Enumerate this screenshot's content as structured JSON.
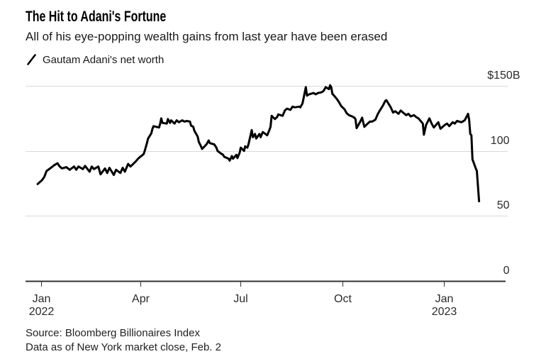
{
  "header": {
    "title": "The Hit to Adani's Fortune",
    "subtitle": "All of his eye-popping wealth gains from last year have been erased"
  },
  "legend": {
    "series_label": "Gautam Adani's net worth"
  },
  "footer": {
    "source_line1": "Source: Bloomberg Billionaires Index",
    "source_line2": "Data as of New York market close, Feb. 2"
  },
  "colors": {
    "background": "#ffffff",
    "series_line": "#000000",
    "gridline": "#d9d9d9",
    "axis_line": "#333333",
    "axis_text": "#2b2b2b",
    "title_text": "#000000"
  },
  "chart_data": {
    "type": "line",
    "title": "The Hit to Adani's Fortune",
    "subtitle": "All of his eye-popping wealth gains from last year have been erased",
    "series_name": "Gautam Adani's net worth",
    "unit": "USD billions",
    "grid": true,
    "legend_position": "top-left",
    "ylim": [
      0,
      150
    ],
    "y_ticks": [
      {
        "value": 150,
        "label": "$150B"
      },
      {
        "value": 100,
        "label": "100"
      },
      {
        "value": 50,
        "label": "50"
      },
      {
        "value": 0,
        "label": "0"
      }
    ],
    "x_domain": [
      "2021-12-18",
      "2023-02-26"
    ],
    "x_ticks": [
      {
        "date": "2022-01-01",
        "label": "Jan",
        "year_label": "2022"
      },
      {
        "date": "2022-04-01",
        "label": "Apr"
      },
      {
        "date": "2022-07-01",
        "label": "Jul"
      },
      {
        "date": "2022-10-01",
        "label": "Oct"
      },
      {
        "date": "2023-01-01",
        "label": "Jan",
        "year_label": "2023"
      }
    ],
    "points": [
      [
        "2021-12-29",
        74.5
      ],
      [
        "2022-01-02",
        77.5
      ],
      [
        "2022-01-04",
        80
      ],
      [
        "2022-01-06",
        84.5
      ],
      [
        "2022-01-10",
        87
      ],
      [
        "2022-01-13",
        89
      ],
      [
        "2022-01-16",
        90.5
      ],
      [
        "2022-01-18",
        88
      ],
      [
        "2022-01-20",
        86.5
      ],
      [
        "2022-01-24",
        87.5
      ],
      [
        "2022-01-27",
        85.5
      ],
      [
        "2022-01-31",
        88
      ],
      [
        "2022-02-02",
        85.5
      ],
      [
        "2022-02-04",
        88
      ],
      [
        "2022-02-08",
        86
      ],
      [
        "2022-02-10",
        88.5
      ],
      [
        "2022-02-14",
        84
      ],
      [
        "2022-02-16",
        88
      ],
      [
        "2022-02-18",
        86
      ],
      [
        "2022-02-22",
        88
      ],
      [
        "2022-02-24",
        82
      ],
      [
        "2022-02-28",
        86.5
      ],
      [
        "2022-03-02",
        83
      ],
      [
        "2022-03-04",
        87
      ],
      [
        "2022-03-08",
        81.5
      ],
      [
        "2022-03-10",
        85.5
      ],
      [
        "2022-03-14",
        83
      ],
      [
        "2022-03-16",
        87
      ],
      [
        "2022-03-18",
        84
      ],
      [
        "2022-03-21",
        90
      ],
      [
        "2022-03-23",
        88
      ],
      [
        "2022-03-25",
        89.5
      ],
      [
        "2022-03-28",
        92
      ],
      [
        "2022-03-30",
        94
      ],
      [
        "2022-04-01",
        95.5
      ],
      [
        "2022-04-04",
        97.5
      ],
      [
        "2022-04-05",
        100
      ],
      [
        "2022-04-07",
        106
      ],
      [
        "2022-04-08",
        109.5
      ],
      [
        "2022-04-11",
        113.5
      ],
      [
        "2022-04-12",
        117
      ],
      [
        "2022-04-13",
        119
      ],
      [
        "2022-04-18",
        118
      ],
      [
        "2022-04-19",
        121
      ],
      [
        "2022-04-20",
        125
      ],
      [
        "2022-04-21",
        121.5
      ],
      [
        "2022-04-25",
        121
      ],
      [
        "2022-04-26",
        124.5
      ],
      [
        "2022-04-28",
        121.5
      ],
      [
        "2022-04-29",
        123.5
      ],
      [
        "2022-05-02",
        121
      ],
      [
        "2022-05-04",
        123.5
      ],
      [
        "2022-05-06",
        122
      ],
      [
        "2022-05-09",
        123.5
      ],
      [
        "2022-05-11",
        122.5
      ],
      [
        "2022-05-13",
        123
      ],
      [
        "2022-05-16",
        122.5
      ],
      [
        "2022-05-17",
        119.5
      ],
      [
        "2022-05-19",
        118.5
      ],
      [
        "2022-05-20",
        115.5
      ],
      [
        "2022-05-23",
        111
      ],
      [
        "2022-05-24",
        107
      ],
      [
        "2022-05-26",
        103.5
      ],
      [
        "2022-05-27",
        101.5
      ],
      [
        "2022-05-31",
        105
      ],
      [
        "2022-06-02",
        108
      ],
      [
        "2022-06-03",
        106
      ],
      [
        "2022-06-07",
        105
      ],
      [
        "2022-06-09",
        102.5
      ],
      [
        "2022-06-10",
        100
      ],
      [
        "2022-06-13",
        98
      ],
      [
        "2022-06-15",
        97
      ],
      [
        "2022-06-16",
        95.5
      ],
      [
        "2022-06-20",
        94
      ],
      [
        "2022-06-21",
        92.5
      ],
      [
        "2022-06-23",
        96
      ],
      [
        "2022-06-24",
        94
      ],
      [
        "2022-06-27",
        97
      ],
      [
        "2022-06-28",
        94.5
      ],
      [
        "2022-06-30",
        98.5
      ],
      [
        "2022-07-01",
        102.5
      ],
      [
        "2022-07-04",
        100
      ],
      [
        "2022-07-05",
        103.5
      ],
      [
        "2022-07-07",
        102.5
      ],
      [
        "2022-07-08",
        105
      ],
      [
        "2022-07-11",
        116
      ],
      [
        "2022-07-12",
        110.5
      ],
      [
        "2022-07-14",
        113
      ],
      [
        "2022-07-15",
        109.5
      ],
      [
        "2022-07-18",
        113
      ],
      [
        "2022-07-19",
        110.5
      ],
      [
        "2022-07-21",
        114.5
      ],
      [
        "2022-07-25",
        112
      ],
      [
        "2022-07-27",
        116
      ],
      [
        "2022-07-28",
        118.5
      ],
      [
        "2022-07-29",
        127
      ],
      [
        "2022-08-01",
        124.5
      ],
      [
        "2022-08-03",
        126
      ],
      [
        "2022-08-04",
        128
      ],
      [
        "2022-08-08",
        127
      ],
      [
        "2022-08-10",
        131
      ],
      [
        "2022-08-12",
        132.5
      ],
      [
        "2022-08-15",
        131.5
      ],
      [
        "2022-08-17",
        134
      ],
      [
        "2022-08-19",
        133.5
      ],
      [
        "2022-08-23",
        134
      ],
      [
        "2022-08-24",
        133.5
      ],
      [
        "2022-08-26",
        136.5
      ],
      [
        "2022-08-29",
        149
      ],
      [
        "2022-08-30",
        142.5
      ],
      [
        "2022-09-01",
        143.5
      ],
      [
        "2022-09-05",
        144.5
      ],
      [
        "2022-09-07",
        143.5
      ],
      [
        "2022-09-09",
        144.5
      ],
      [
        "2022-09-12",
        145
      ],
      [
        "2022-09-14",
        146
      ],
      [
        "2022-09-15",
        147.5
      ],
      [
        "2022-09-16",
        149
      ],
      [
        "2022-09-19",
        147.5
      ],
      [
        "2022-09-20",
        150.5
      ],
      [
        "2022-09-21",
        149
      ],
      [
        "2022-09-22",
        144
      ],
      [
        "2022-09-26",
        140
      ],
      [
        "2022-09-28",
        137.5
      ],
      [
        "2022-09-30",
        134.5
      ],
      [
        "2022-10-03",
        132
      ],
      [
        "2022-10-05",
        129
      ],
      [
        "2022-10-07",
        127.5
      ],
      [
        "2022-10-10",
        126.5
      ],
      [
        "2022-10-12",
        125.5
      ],
      [
        "2022-10-13",
        124.5
      ],
      [
        "2022-10-14",
        117.5
      ],
      [
        "2022-10-17",
        122
      ],
      [
        "2022-10-19",
        125.5
      ],
      [
        "2022-10-21",
        118.5
      ],
      [
        "2022-10-24",
        121
      ],
      [
        "2022-10-26",
        122.5
      ],
      [
        "2022-10-28",
        122.5
      ],
      [
        "2022-10-31",
        124
      ],
      [
        "2022-11-02",
        128
      ],
      [
        "2022-11-04",
        131
      ],
      [
        "2022-11-07",
        135
      ],
      [
        "2022-11-09",
        138.5
      ],
      [
        "2022-11-10",
        139
      ],
      [
        "2022-11-11",
        137.5
      ],
      [
        "2022-11-14",
        133.5
      ],
      [
        "2022-11-16",
        129.5
      ],
      [
        "2022-11-18",
        130.5
      ],
      [
        "2022-11-21",
        128.5
      ],
      [
        "2022-11-23",
        131
      ],
      [
        "2022-11-25",
        129.5
      ],
      [
        "2022-11-28",
        127.5
      ],
      [
        "2022-11-30",
        128.5
      ],
      [
        "2022-12-02",
        126.5
      ],
      [
        "2022-12-05",
        127.5
      ],
      [
        "2022-12-07",
        126
      ],
      [
        "2022-12-09",
        125
      ],
      [
        "2022-12-13",
        121
      ],
      [
        "2022-12-14",
        112.5
      ],
      [
        "2022-12-16",
        120
      ],
      [
        "2022-12-19",
        125
      ],
      [
        "2022-12-21",
        121
      ],
      [
        "2022-12-23",
        118
      ],
      [
        "2022-12-27",
        122
      ],
      [
        "2022-12-29",
        117
      ],
      [
        "2023-01-02",
        120
      ],
      [
        "2023-01-04",
        121
      ],
      [
        "2023-01-06",
        119
      ],
      [
        "2023-01-09",
        122
      ],
      [
        "2023-01-11",
        121
      ],
      [
        "2023-01-13",
        123
      ],
      [
        "2023-01-17",
        122
      ],
      [
        "2023-01-20",
        123.5
      ],
      [
        "2023-01-23",
        128.5
      ],
      [
        "2023-01-24",
        124
      ],
      [
        "2023-01-25",
        113
      ],
      [
        "2023-01-26",
        112
      ],
      [
        "2023-01-27",
        93.5
      ],
      [
        "2023-01-30",
        86.5
      ],
      [
        "2023-01-31",
        84.5
      ],
      [
        "2023-02-01",
        72.5
      ],
      [
        "2023-02-02",
        61.3
      ]
    ]
  }
}
